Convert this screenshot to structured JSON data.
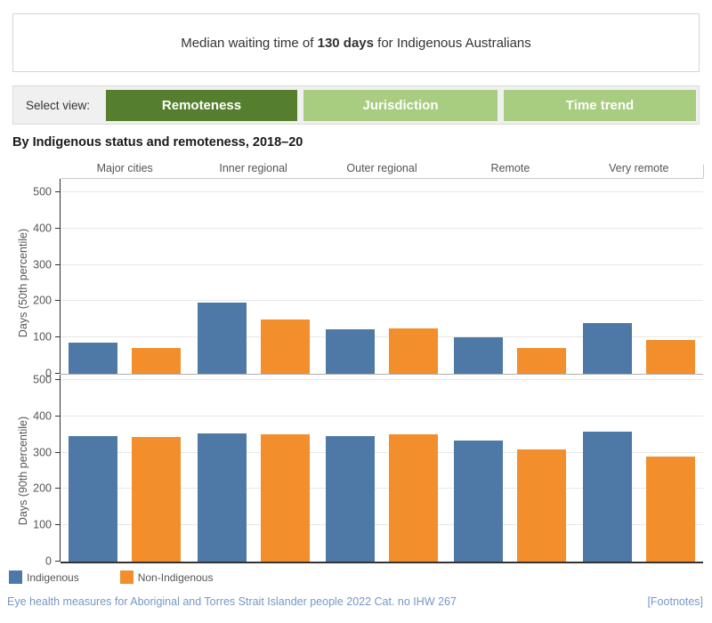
{
  "header": {
    "prefix": "Median waiting time of ",
    "highlight": "130 days",
    "suffix": " for Indigenous Australians"
  },
  "view_selector": {
    "label": "Select view:",
    "buttons": [
      {
        "label": "Remoteness",
        "selected": true
      },
      {
        "label": "Jurisdiction",
        "selected": false
      },
      {
        "label": "Time trend",
        "selected": false
      }
    ]
  },
  "chart_title": "By Indigenous status and remoteness, 2018–20",
  "chart_data": {
    "type": "bar",
    "categories": [
      "Major cities",
      "Inner regional",
      "Outer regional",
      "Remote",
      "Very remote"
    ],
    "grid": true,
    "legend_position": "bottom-left",
    "legend": [
      "Indigenous",
      "Non-Indigenous"
    ],
    "panels": [
      {
        "ylabel": "Days (50th percentile)",
        "ylim": [
          0,
          500
        ],
        "yticks": [
          0,
          100,
          200,
          300,
          400,
          500
        ],
        "series": [
          {
            "name": "Indigenous",
            "color": "#4e79a7",
            "values": [
              85,
              196,
              122,
              101,
              139
            ]
          },
          {
            "name": "Non-Indigenous",
            "color": "#f28e2b",
            "values": [
              70,
              150,
              124,
              70,
              94
            ]
          }
        ]
      },
      {
        "ylabel": "Days (90th percentile)",
        "ylim": [
          0,
          500
        ],
        "yticks": [
          0,
          100,
          200,
          300,
          400,
          500
        ],
        "series": [
          {
            "name": "Indigenous",
            "color": "#4e79a7",
            "values": [
              346,
              354,
              345,
              334,
              358
            ]
          },
          {
            "name": "Non-Indigenous",
            "color": "#f28e2b",
            "values": [
              343,
              351,
              350,
              308,
              289
            ]
          }
        ]
      }
    ]
  },
  "legend": {
    "items": [
      {
        "label": "Indigenous",
        "color": "#4e79a7"
      },
      {
        "label": "Non-Indigenous",
        "color": "#f28e2b"
      }
    ]
  },
  "footer": {
    "source_link": "Eye health measures for Aboriginal and Torres Strait Islander people 2022 Cat. no IHW 267",
    "footnotes_link": "[Footnotes]"
  },
  "colors": {
    "indigenous": "#4e79a7",
    "non_indigenous": "#f28e2b",
    "button_selected": "#557f2e",
    "button_unselected": "#a8cc80",
    "link": "#7796c8"
  }
}
